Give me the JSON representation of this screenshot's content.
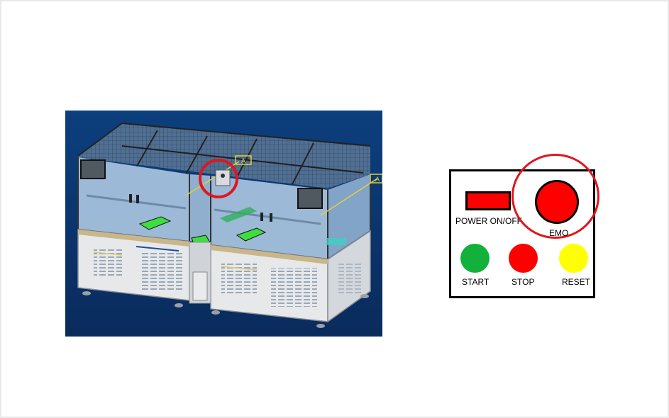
{
  "panel": {
    "power_label": "POWER ON/OFF",
    "emo_label": "EMO",
    "start_label": "START",
    "stop_label": "STOP",
    "reset_label": "RESET"
  },
  "machine": {
    "marker_a": "A"
  },
  "colors": {
    "emergency_red": "#ff0000",
    "start_green": "#13b13c",
    "reset_yellow": "#ffff00",
    "highlight_ring": "#e0161d",
    "viewport_blue": "#0e3e7e"
  },
  "icons": [
    "emergency-stop-icon",
    "power-switch-icon",
    "indicator-lamp-icon"
  ]
}
